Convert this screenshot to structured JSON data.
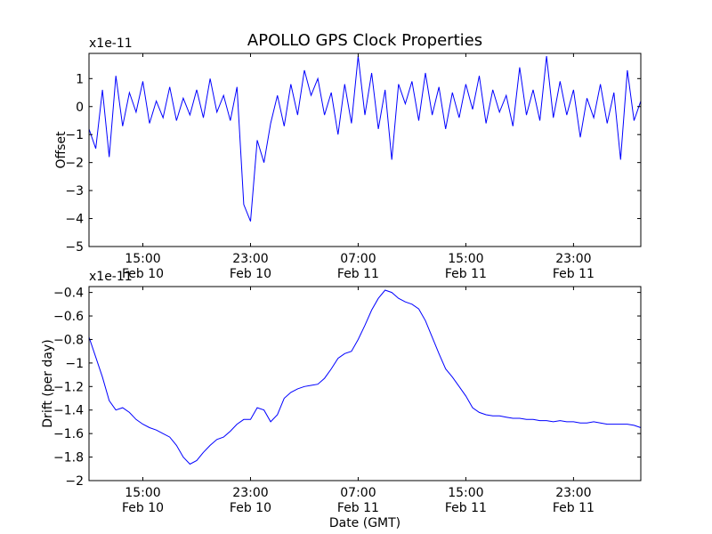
{
  "title": "APOLLO GPS Clock Properties",
  "chart_data": [
    {
      "type": "line",
      "ylabel": "Offset",
      "yscale_label": "x1e-11",
      "ylim": [
        -5,
        1.9
      ],
      "yticks": [
        1,
        0,
        -1,
        -2,
        -3,
        -4,
        -5
      ],
      "xlim": [
        11.0,
        52.0
      ],
      "xticks": [
        {
          "x": 15,
          "time": "15:00",
          "date": "Feb 10"
        },
        {
          "x": 23,
          "time": "23:00",
          "date": "Feb 10"
        },
        {
          "x": 31,
          "time": "07:00",
          "date": "Feb 11"
        },
        {
          "x": 39,
          "time": "15:00",
          "date": "Feb 11"
        },
        {
          "x": 47,
          "time": "23:00",
          "date": "Feb 11"
        }
      ],
      "line_color": "#0000ff",
      "series": [
        {
          "x": [
            11.0,
            11.5,
            12.0,
            12.5,
            13.0,
            13.5,
            14.0,
            14.5,
            15.0,
            15.5,
            16.0,
            16.5,
            17.0,
            17.5,
            18.0,
            18.5,
            19.0,
            19.5,
            20.0,
            20.5,
            21.0,
            21.5,
            22.0,
            22.5,
            23.0,
            23.5,
            24.0,
            24.5,
            25.0,
            25.5,
            26.0,
            26.5,
            27.0,
            27.5,
            28.0,
            28.5,
            29.0,
            29.5,
            30.0,
            30.5,
            31.0,
            31.5,
            32.0,
            32.5,
            33.0,
            33.5,
            34.0,
            34.5,
            35.0,
            35.5,
            36.0,
            36.5,
            37.0,
            37.5,
            38.0,
            38.5,
            39.0,
            39.5,
            40.0,
            40.5,
            41.0,
            41.5,
            42.0,
            42.5,
            43.0,
            43.5,
            44.0,
            44.5,
            45.0,
            45.5,
            46.0,
            46.5,
            47.0,
            47.5,
            48.0,
            48.5,
            49.0,
            49.5,
            50.0,
            50.5,
            51.0,
            51.5,
            52.0
          ],
          "y": [
            -0.8,
            -1.5,
            0.6,
            -1.8,
            1.1,
            -0.7,
            0.5,
            -0.2,
            0.9,
            -0.6,
            0.2,
            -0.4,
            0.7,
            -0.5,
            0.3,
            -0.3,
            0.6,
            -0.4,
            1.0,
            -0.2,
            0.4,
            -0.5,
            0.7,
            -3.5,
            -4.1,
            -1.2,
            -2.0,
            -0.6,
            0.4,
            -0.7,
            0.8,
            -0.3,
            1.3,
            0.4,
            1.0,
            -0.3,
            0.5,
            -1.0,
            0.8,
            -0.6,
            1.8,
            -0.3,
            1.2,
            -0.8,
            0.6,
            -1.9,
            0.8,
            0.1,
            0.9,
            -0.5,
            1.2,
            -0.3,
            0.7,
            -0.8,
            0.5,
            -0.4,
            0.8,
            -0.1,
            1.1,
            -0.6,
            0.6,
            -0.2,
            0.4,
            -0.7,
            1.4,
            -0.3,
            0.6,
            -0.5,
            1.8,
            -0.4,
            0.9,
            -0.3,
            0.6,
            -1.1,
            0.3,
            -0.4,
            0.8,
            -0.6,
            0.5,
            -1.9,
            1.3,
            -0.5,
            0.2
          ]
        }
      ]
    },
    {
      "type": "line",
      "xlabel": "Date (GMT)",
      "ylabel": "Drift (per day)",
      "yscale_label": "x1e-11",
      "ylim": [
        -2.0,
        -0.35
      ],
      "yticks": [
        -0.4,
        -0.6,
        -0.8,
        -1.0,
        -1.2,
        -1.4,
        -1.6,
        -1.8,
        -2.0
      ],
      "xlim": [
        11.0,
        52.0
      ],
      "xticks": [
        {
          "x": 15,
          "time": "15:00",
          "date": "Feb 10"
        },
        {
          "x": 23,
          "time": "23:00",
          "date": "Feb 10"
        },
        {
          "x": 31,
          "time": "07:00",
          "date": "Feb 11"
        },
        {
          "x": 39,
          "time": "15:00",
          "date": "Feb 11"
        },
        {
          "x": 47,
          "time": "23:00",
          "date": "Feb 11"
        }
      ],
      "line_color": "#0000ff",
      "series": [
        {
          "x": [
            11.0,
            11.5,
            12.0,
            12.5,
            13.0,
            13.5,
            14.0,
            14.5,
            15.0,
            15.5,
            16.0,
            16.5,
            17.0,
            17.5,
            18.0,
            18.5,
            19.0,
            19.5,
            20.0,
            20.5,
            21.0,
            21.5,
            22.0,
            22.5,
            23.0,
            23.5,
            24.0,
            24.5,
            25.0,
            25.5,
            26.0,
            26.5,
            27.0,
            27.5,
            28.0,
            28.5,
            29.0,
            29.5,
            30.0,
            30.5,
            31.0,
            31.5,
            32.0,
            32.5,
            33.0,
            33.5,
            34.0,
            34.5,
            35.0,
            35.5,
            36.0,
            36.5,
            37.0,
            37.5,
            38.0,
            38.5,
            39.0,
            39.5,
            40.0,
            40.5,
            41.0,
            41.5,
            42.0,
            42.5,
            43.0,
            43.5,
            44.0,
            44.5,
            45.0,
            45.5,
            46.0,
            46.5,
            47.0,
            47.5,
            48.0,
            48.5,
            49.0,
            49.5,
            50.0,
            50.5,
            51.0,
            51.5,
            52.0
          ],
          "y": [
            -0.78,
            -0.95,
            -1.12,
            -1.32,
            -1.4,
            -1.38,
            -1.42,
            -1.48,
            -1.52,
            -1.55,
            -1.57,
            -1.6,
            -1.63,
            -1.7,
            -1.8,
            -1.86,
            -1.83,
            -1.76,
            -1.7,
            -1.65,
            -1.63,
            -1.58,
            -1.52,
            -1.48,
            -1.48,
            -1.38,
            -1.4,
            -1.5,
            -1.44,
            -1.3,
            -1.25,
            -1.22,
            -1.2,
            -1.19,
            -1.18,
            -1.13,
            -1.05,
            -0.96,
            -0.92,
            -0.9,
            -0.8,
            -0.68,
            -0.55,
            -0.45,
            -0.38,
            -0.4,
            -0.45,
            -0.48,
            -0.5,
            -0.54,
            -0.64,
            -0.78,
            -0.92,
            -1.05,
            -1.12,
            -1.2,
            -1.28,
            -1.38,
            -1.42,
            -1.44,
            -1.45,
            -1.45,
            -1.46,
            -1.47,
            -1.47,
            -1.48,
            -1.48,
            -1.49,
            -1.49,
            -1.5,
            -1.49,
            -1.5,
            -1.5,
            -1.51,
            -1.51,
            -1.5,
            -1.51,
            -1.52,
            -1.52,
            -1.52,
            -1.52,
            -1.53,
            -1.55
          ]
        }
      ]
    }
  ]
}
